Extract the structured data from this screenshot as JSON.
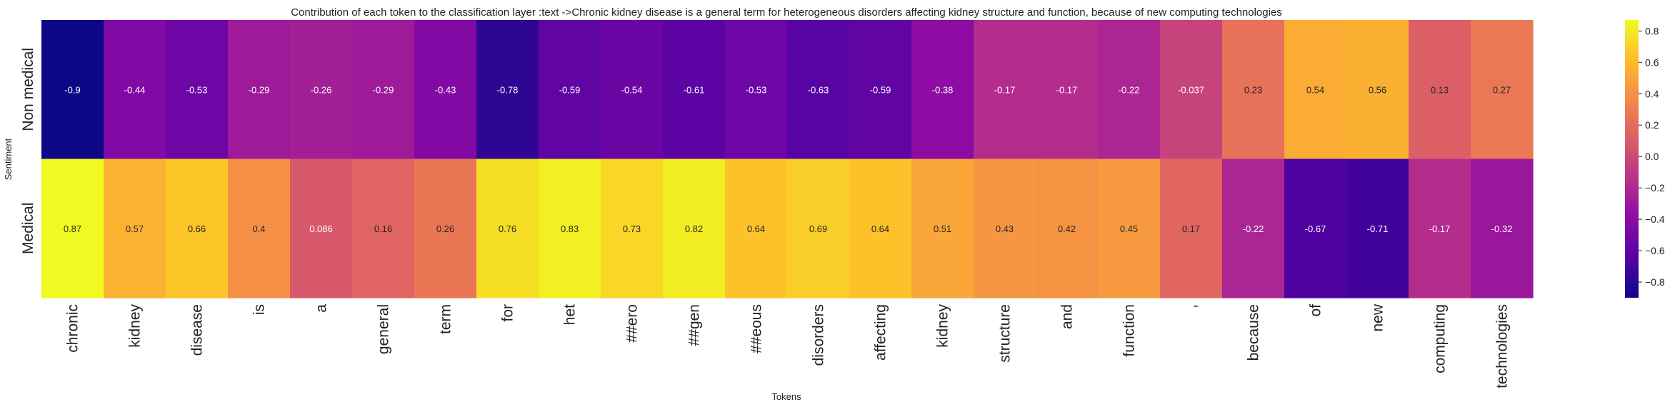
{
  "chart_data": {
    "type": "heatmap",
    "title": "Contribution of each token to the classification layer :text ->Chronic kidney disease is a general term for heterogeneous disorders affecting kidney structure and function, because of new computing technologies",
    "xlabel": "Tokens",
    "ylabel": "Sentiment",
    "rows": [
      "Non medical",
      "Medical"
    ],
    "columns": [
      "chronic",
      "kidney",
      "disease",
      "is",
      "a",
      "general",
      "term",
      "for",
      "het",
      "##ero",
      "##gen",
      "##eous",
      "disorders",
      "affecting",
      "kidney",
      "structure",
      "and",
      "function",
      ",",
      "because",
      "of",
      "new",
      "computing",
      "technologies"
    ],
    "values": [
      [
        -0.9,
        -0.44,
        -0.53,
        -0.29,
        -0.26,
        -0.29,
        -0.43,
        -0.78,
        -0.59,
        -0.54,
        -0.61,
        -0.53,
        -0.63,
        -0.59,
        -0.38,
        -0.17,
        -0.17,
        -0.22,
        -0.037,
        0.23,
        0.54,
        0.56,
        0.13,
        0.27
      ],
      [
        0.87,
        0.57,
        0.66,
        0.4,
        0.086,
        0.16,
        0.26,
        0.76,
        0.83,
        0.73,
        0.82,
        0.64,
        0.69,
        0.64,
        0.51,
        0.43,
        0.42,
        0.45,
        0.17,
        -0.22,
        -0.67,
        -0.71,
        -0.17,
        -0.32
      ]
    ],
    "colormap": "plasma",
    "vmin": -0.9,
    "vmax": 0.87,
    "colorbar_ticks": [
      0.8,
      0.6,
      0.4,
      0.2,
      0.0,
      -0.2,
      -0.4,
      -0.6,
      -0.8
    ],
    "colorbar_tick_labels": [
      "0.8",
      "0.6",
      "0.4",
      "0.2",
      "0.0",
      "−0.2",
      "−0.4",
      "−0.6",
      "−0.8"
    ],
    "value_labels": [
      [
        "-0.9",
        "-0.44",
        "-0.53",
        "-0.29",
        "-0.26",
        "-0.29",
        "-0.43",
        "-0.78",
        "-0.59",
        "-0.54",
        "-0.61",
        "-0.53",
        "-0.63",
        "-0.59",
        "-0.38",
        "-0.17",
        "-0.17",
        "-0.22",
        "-0.037",
        "0.23",
        "0.54",
        "0.56",
        "0.13",
        "0.27"
      ],
      [
        "0.87",
        "0.57",
        "0.66",
        "0.4",
        "0.086",
        "0.16",
        "0.26",
        "0.76",
        "0.83",
        "0.73",
        "0.82",
        "0.64",
        "0.69",
        "0.64",
        "0.51",
        "0.43",
        "0.42",
        "0.45",
        "0.17",
        "-0.22",
        "-0.67",
        "-0.71",
        "-0.17",
        "-0.32"
      ]
    ]
  }
}
